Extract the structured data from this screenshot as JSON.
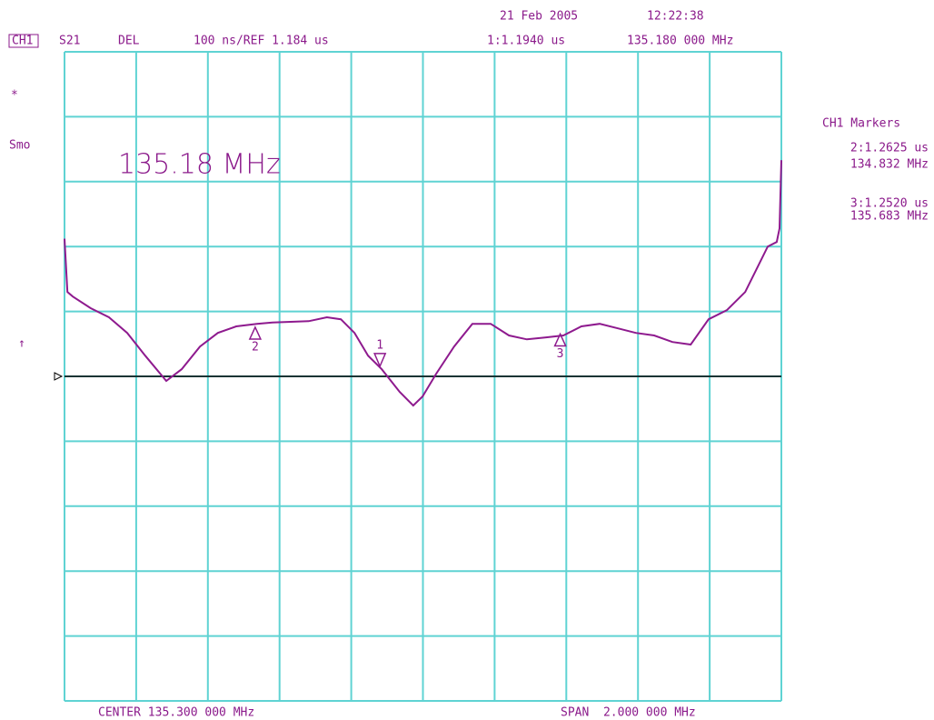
{
  "header": {
    "date": "21 Feb 2005",
    "time": "12:22:38",
    "channel": "CH1",
    "parameter": "S21",
    "format": "DEL",
    "scale": "100 ns/REF 1.184 us",
    "marker_readout": "1:1.1940 us",
    "marker_frequency": "135.180 000 MHz"
  },
  "side": {
    "star": "*",
    "smoothing": "Smo",
    "ref_arrow": "↑"
  },
  "annotation": "135.18 MHz",
  "marker_panel": {
    "title": "CH1 Markers",
    "entries": [
      {
        "readout": "2:1.2625 us",
        "frequency": "134.832 MHz"
      },
      {
        "readout": "3:1.2520 us",
        "frequency": "135.683 MHz"
      }
    ]
  },
  "footer": {
    "center": "CENTER 135.300 000 MHz",
    "span": "SPAN  2.000 000 MHz"
  },
  "chart_data": {
    "type": "line",
    "x": [
      134.3,
      134.308,
      134.323,
      134.373,
      134.424,
      134.475,
      134.525,
      134.584,
      134.627,
      134.678,
      134.728,
      134.779,
      134.837,
      134.88,
      134.931,
      134.981,
      135.032,
      135.071,
      135.109,
      135.147,
      135.185,
      135.235,
      135.273,
      135.299,
      135.337,
      135.387,
      135.438,
      135.489,
      135.54,
      135.59,
      135.641,
      135.692,
      135.742,
      135.793,
      135.844,
      135.894,
      135.945,
      135.996,
      136.047,
      136.097,
      136.148,
      136.199,
      136.237,
      136.262,
      136.287,
      136.295,
      136.3
    ],
    "values": [
      1.396,
      1.314,
      1.307,
      1.289,
      1.275,
      1.251,
      1.216,
      1.177,
      1.195,
      1.23,
      1.251,
      1.261,
      1.265,
      1.267,
      1.268,
      1.269,
      1.275,
      1.272,
      1.251,
      1.216,
      1.195,
      1.16,
      1.139,
      1.153,
      1.188,
      1.23,
      1.265,
      1.265,
      1.247,
      1.241,
      1.244,
      1.247,
      1.261,
      1.265,
      1.258,
      1.251,
      1.247,
      1.237,
      1.233,
      1.272,
      1.286,
      1.314,
      1.356,
      1.384,
      1.391,
      1.412,
      1.517
    ],
    "color": "#8e1a8e",
    "grid_color": "#5fd3d3",
    "xlim": [
      134.3,
      136.3
    ],
    "ylim": [
      0.684,
      1.684
    ],
    "xticks": [
      134.3,
      134.5,
      134.7,
      134.9,
      135.1,
      135.3,
      135.5,
      135.7,
      135.9,
      136.1,
      136.3
    ],
    "yticks": [
      0.684,
      0.784,
      0.884,
      0.984,
      1.084,
      1.184,
      1.284,
      1.384,
      1.484,
      1.584,
      1.684
    ],
    "ref": 1.184,
    "markers": [
      {
        "label": "1",
        "x": 135.18,
        "value": 1.194
      },
      {
        "label": "2",
        "x": 134.832,
        "value": 1.2625
      },
      {
        "label": "3",
        "x": 135.683,
        "value": 1.252
      }
    ]
  }
}
